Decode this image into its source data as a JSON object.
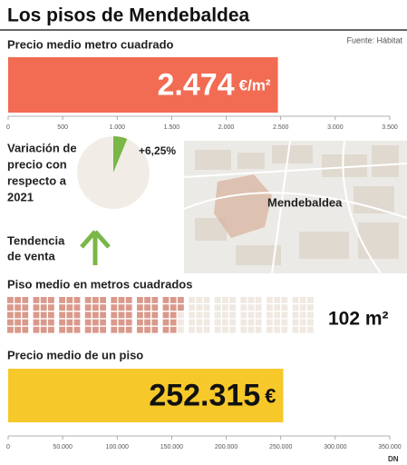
{
  "title": "Los pisos de  Mendebaldea",
  "source": "Fuente: Hábitat",
  "map_label": "Mendebaldea",
  "trend_label": [
    "Tendencia",
    "de venta"
  ],
  "logo": "DN",
  "chart_data": [
    {
      "type": "hbar",
      "title": "Precio medio metro cuadrado",
      "values": [
        2474
      ],
      "value_labels": [
        "2.474"
      ],
      "unit": "€/m²",
      "color": "#f26b53",
      "xlim": [
        0,
        3500
      ],
      "xticks": [
        0,
        500,
        {
          "value": 1000,
          "label": "1.000"
        },
        {
          "value": 1500,
          "label": "1.500"
        },
        {
          "value": 2000,
          "label": "2.000"
        },
        {
          "value": 2500,
          "label": "2.500"
        },
        {
          "value": 3000,
          "label": "3.000"
        },
        {
          "value": 3500,
          "label": "3.500"
        }
      ]
    },
    {
      "type": "pie",
      "title": [
        "Variación de",
        "precio con",
        "respecto a",
        "2021"
      ],
      "values": [
        6.25
      ],
      "value_labels": [
        "+6,25%"
      ],
      "color": "#7ab648"
    },
    {
      "type": "waffle",
      "title": "Piso medio en metros cuadrados",
      "values": [
        102
      ],
      "value_labels": [
        "102 m²"
      ],
      "color": "#d9998b"
    },
    {
      "type": "hbar",
      "title": "Precio medio de un piso",
      "values": [
        252315
      ],
      "value_labels": [
        "252.315"
      ],
      "unit": "€",
      "color": "#f7c82a",
      "xlim": [
        0,
        350000
      ],
      "xticks": [
        0,
        {
          "value": 50000,
          "label": "50.000"
        },
        {
          "value": 100000,
          "label": "100.000"
        },
        {
          "value": 150000,
          "label": "150.000"
        },
        {
          "value": 200000,
          "label": "200.000"
        },
        {
          "value": 250000,
          "label": "250.000"
        },
        {
          "value": 300000,
          "label": "300.000"
        },
        {
          "value": 350000,
          "label": "350.000"
        }
      ]
    }
  ]
}
